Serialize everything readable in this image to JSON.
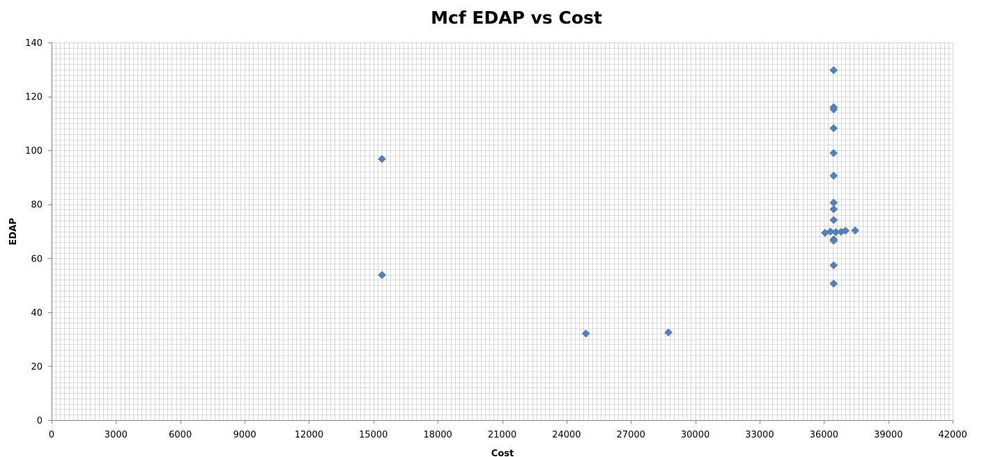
{
  "chart_data": {
    "type": "scatter",
    "title": "Mcf EDAP vs Cost",
    "xlabel": "Cost",
    "ylabel": "EDAP",
    "xlim": [
      0,
      42000
    ],
    "ylim": [
      0,
      140
    ],
    "x_ticks": [
      0,
      3000,
      6000,
      9000,
      12000,
      15000,
      18000,
      21000,
      24000,
      27000,
      30000,
      33000,
      36000,
      39000,
      42000
    ],
    "y_ticks": [
      0,
      20,
      40,
      60,
      80,
      100,
      120,
      140
    ],
    "x_tick_labels": [
      "0",
      "3000",
      "6000",
      "9000",
      "12000",
      "15000",
      "18000",
      "21000",
      "24000",
      "27000",
      "30000",
      "33000",
      "36000",
      "39000",
      "42000"
    ],
    "y_tick_labels": [
      "0",
      "20",
      "40",
      "60",
      "80",
      "100",
      "120",
      "140"
    ],
    "grid": true,
    "legend": false,
    "marker": "diamond",
    "colors": {
      "marker": "#4f81bd",
      "grid": "#bfbfbf",
      "axis": "#868686"
    },
    "series": [
      {
        "points": [
          {
            "x": 15400,
            "y": 96.8
          },
          {
            "x": 15400,
            "y": 53.8
          },
          {
            "x": 24900,
            "y": 32.1
          },
          {
            "x": 28750,
            "y": 32.5
          },
          {
            "x": 36450,
            "y": 129.7
          },
          {
            "x": 36450,
            "y": 116.0
          },
          {
            "x": 36450,
            "y": 115.2
          },
          {
            "x": 36450,
            "y": 108.2
          },
          {
            "x": 36450,
            "y": 99.0
          },
          {
            "x": 36450,
            "y": 90.6
          },
          {
            "x": 36450,
            "y": 80.6
          },
          {
            "x": 36450,
            "y": 78.2
          },
          {
            "x": 36450,
            "y": 74.2
          },
          {
            "x": 36050,
            "y": 69.4
          },
          {
            "x": 36300,
            "y": 69.9
          },
          {
            "x": 36550,
            "y": 69.7
          },
          {
            "x": 36800,
            "y": 69.8
          },
          {
            "x": 37000,
            "y": 70.2
          },
          {
            "x": 37450,
            "y": 70.3
          },
          {
            "x": 36450,
            "y": 67.0
          },
          {
            "x": 36450,
            "y": 66.5
          },
          {
            "x": 36450,
            "y": 57.4
          },
          {
            "x": 36450,
            "y": 50.6
          }
        ]
      }
    ]
  }
}
